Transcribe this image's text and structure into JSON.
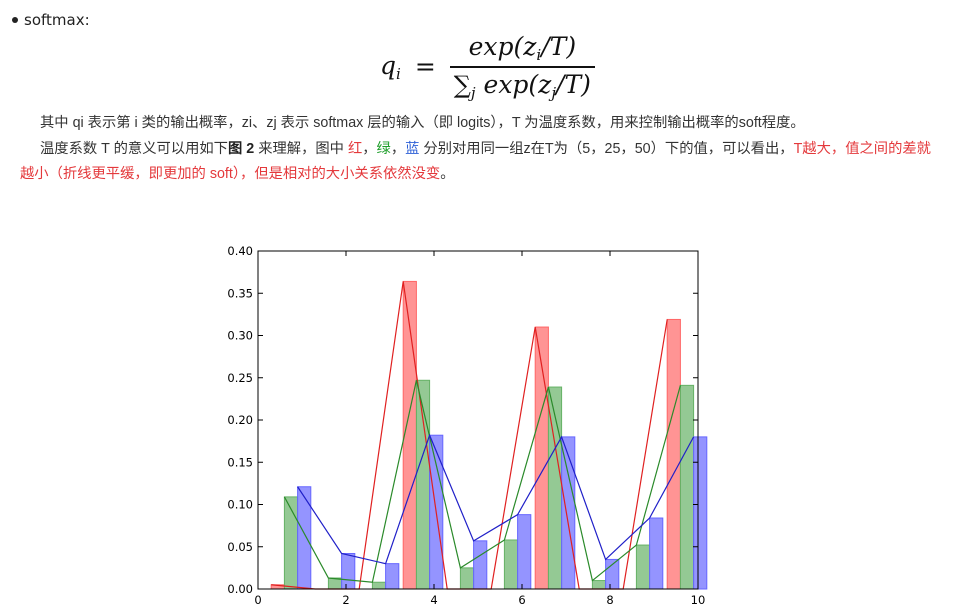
{
  "bullet": {
    "label": "softmax:"
  },
  "formula": {
    "lhs": "q",
    "lhs_sub": "i",
    "equals": "=",
    "numerator": "exp(z",
    "numerator_sub": "i",
    "numerator_tail": "/T)",
    "denominator_sigma": "∑",
    "denominator_sigma_sub": "j",
    "denominator": "exp(z",
    "denominator_sub": "j",
    "denominator_tail": "/T)"
  },
  "paragraph1": "其中 qi 表示第 i 类的输出概率，zi、zj 表示 softmax 层的输入（即 logits），T 为温度系数，用来控制输出概率的soft程度。",
  "paragraph2": {
    "part1": "温度系数 T 的意义可以用如下",
    "figure_ref": "图 2",
    "part2": " 来理解，图中 ",
    "red": "红",
    "sep1": "，",
    "green": "绿",
    "sep2": "，",
    "blue": "蓝",
    "part3": " 分别对用同一组z在T为（5，25，50）下的值，可以看出，",
    "highlight": "T越大，值之间的差就越小（折线更平缓，即更加的 soft），但是相对的大小关系依然没变",
    "end": "。"
  },
  "colors": {
    "red": "#e4393c",
    "green": "#1e9e2a",
    "blue": "#2c5fd6"
  },
  "chart_data": {
    "type": "bar",
    "title": "",
    "xlabel": "",
    "ylabel": "",
    "xlim": [
      0,
      10
    ],
    "ylim": [
      0,
      0.4
    ],
    "xticks": [
      0,
      2,
      4,
      6,
      8,
      10
    ],
    "yticks": [
      0.0,
      0.05,
      0.1,
      0.15,
      0.2,
      0.25,
      0.3,
      0.35,
      0.4
    ],
    "grid": false,
    "bar_width": 0.3,
    "x": [
      0.3,
      1.3,
      2.3,
      3.3,
      4.3,
      5.3,
      6.3,
      7.3,
      8.3,
      9.3
    ],
    "series": [
      {
        "color": "#ff6666",
        "offset": 0.0,
        "values": [
          0.005,
          0.0,
          0.0,
          0.364,
          0.0,
          0.0,
          0.31,
          0.0,
          0.0,
          0.319
        ]
      },
      {
        "color": "#66b266",
        "offset": 0.3,
        "values": [
          0.109,
          0.013,
          0.008,
          0.247,
          0.025,
          0.058,
          0.239,
          0.01,
          0.052,
          0.241
        ]
      },
      {
        "color": "#6666ff",
        "offset": 0.6,
        "values": [
          0.121,
          0.042,
          0.03,
          0.182,
          0.057,
          0.088,
          0.18,
          0.035,
          0.084,
          0.18
        ]
      }
    ]
  }
}
